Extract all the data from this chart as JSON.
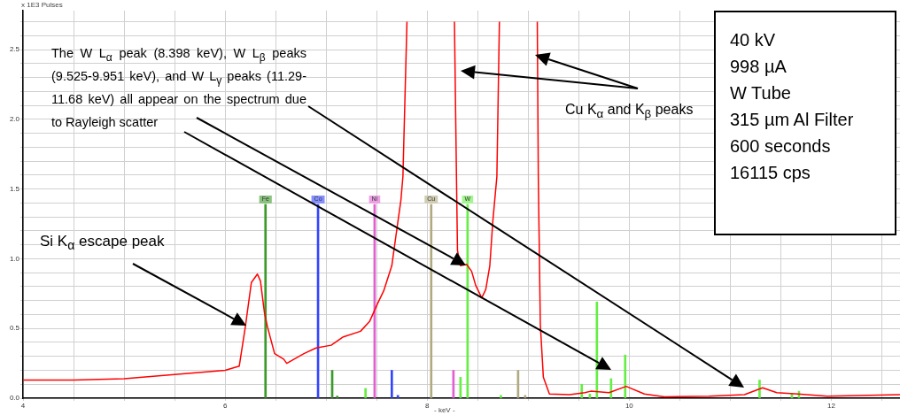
{
  "chart_data": {
    "type": "line",
    "xlabel": "- keV -",
    "ylabel": "x 1E3 Pulses",
    "xlim": [
      4,
      12.68
    ],
    "ylim": [
      0,
      2.78
    ],
    "xticks": [
      4,
      {
        "value": 4.5,
        "label": null
      },
      {
        "value": 5,
        "label": null
      },
      {
        "value": 5.5,
        "label": null
      },
      6,
      {
        "value": 6.5,
        "label": null
      },
      {
        "value": 7,
        "label": null
      },
      {
        "value": 7.5,
        "label": null
      },
      8,
      {
        "value": 8.5,
        "label": null
      },
      {
        "value": 9,
        "label": null
      },
      {
        "value": 9.5,
        "label": null
      },
      10,
      {
        "value": 10.5,
        "label": null
      },
      {
        "value": 11,
        "label": null
      },
      {
        "value": 11.5,
        "label": null
      },
      12,
      {
        "value": 12.5,
        "label": null
      }
    ],
    "yticks": [
      {
        "value": 0,
        "label": "0.0"
      },
      {
        "value": 0.1,
        "label": null
      },
      {
        "value": 0.2,
        "label": null
      },
      {
        "value": 0.3,
        "label": null
      },
      {
        "value": 0.4,
        "label": null
      },
      {
        "value": 0.5,
        "label": "0.5"
      },
      {
        "value": 0.6,
        "label": null
      },
      {
        "value": 0.7,
        "label": null
      },
      {
        "value": 0.8,
        "label": null
      },
      {
        "value": 0.9,
        "label": null
      },
      {
        "value": 1,
        "label": "1.0"
      },
      {
        "value": 1.1,
        "label": null
      },
      {
        "value": 1.2,
        "label": null
      },
      {
        "value": 1.3,
        "label": null
      },
      {
        "value": 1.4,
        "label": null
      },
      {
        "value": 1.5,
        "label": "1.5"
      },
      {
        "value": 1.6,
        "label": null
      },
      {
        "value": 1.7,
        "label": null
      },
      {
        "value": 1.8,
        "label": null
      },
      {
        "value": 1.9,
        "label": null
      },
      {
        "value": 2,
        "label": "2.0"
      },
      {
        "value": 2.1,
        "label": null
      },
      {
        "value": 2.2,
        "label": null
      },
      {
        "value": 2.3,
        "label": null
      },
      {
        "value": 2.4,
        "label": null
      },
      {
        "value": 2.5,
        "label": "2.5"
      },
      {
        "value": 2.6,
        "label": null
      },
      {
        "value": 2.7,
        "label": null
      }
    ],
    "grid": true,
    "marker": "none",
    "line_style": "solid",
    "series": [
      {
        "color": "#ff0000",
        "x": [
          4.0,
          4.5,
          5.0,
          5.5,
          6.0,
          6.14,
          6.2,
          6.26,
          6.32,
          6.35,
          6.39,
          6.42,
          6.49,
          6.58,
          6.61,
          6.78,
          6.9,
          7.05,
          7.17,
          7.34,
          7.43,
          7.51,
          7.57,
          7.65,
          7.69,
          7.74,
          7.76,
          7.8,
          8.0,
          8.27,
          8.29,
          8.3,
          8.33,
          8.39,
          8.44,
          8.48,
          8.54,
          8.58,
          8.62,
          8.65,
          8.69,
          8.715,
          8.9,
          9.09,
          9.1,
          9.12,
          9.15,
          9.21,
          9.41,
          9.56,
          9.62,
          9.8,
          9.97,
          10.15,
          10.35,
          10.79,
          11.14,
          11.32,
          11.46,
          11.67,
          11.96,
          12.68
        ],
        "values": [
          0.13,
          0.13,
          0.14,
          0.17,
          0.2,
          0.23,
          0.51,
          0.83,
          0.89,
          0.84,
          0.61,
          0.51,
          0.32,
          0.28,
          0.25,
          0.32,
          0.36,
          0.38,
          0.44,
          0.48,
          0.55,
          0.68,
          0.77,
          0.95,
          1.16,
          1.42,
          1.59,
          2.7,
          null,
          2.7,
          1.59,
          1.06,
          0.95,
          0.96,
          0.91,
          0.81,
          0.72,
          0.78,
          0.95,
          1.27,
          1.59,
          2.7,
          null,
          2.7,
          1.59,
          0.53,
          0.15,
          0.03,
          0.025,
          0.04,
          0.05,
          0.04,
          0.085,
          0.03,
          0.01,
          0.015,
          0.025,
          0.075,
          0.04,
          0.03,
          0.015,
          0.025
        ]
      },
      {
        "type": "bar",
        "name": "Fe",
        "color": "#3a9a2a",
        "x": [
          6.4,
          7.06,
          7.11
        ],
        "values": [
          1.39,
          0.2,
          0.015
        ]
      },
      {
        "type": "bar",
        "name": "Co",
        "color": "#3344ff",
        "x": [
          6.92,
          7.65,
          7.71
        ],
        "values": [
          1.39,
          0.2,
          0.02
        ]
      },
      {
        "type": "bar",
        "name": "Ni",
        "color": "#e060d0",
        "x": [
          7.48,
          8.26
        ],
        "values": [
          1.39,
          0.2
        ]
      },
      {
        "type": "bar",
        "name": "Cu",
        "color": "#b0aa80",
        "x": [
          8.04,
          8.9,
          8.97
        ],
        "values": [
          1.39,
          0.2,
          0.02
        ]
      },
      {
        "type": "bar",
        "name": "W",
        "color": "#66ee44",
        "x": [
          7.39,
          8.33,
          8.4,
          8.73,
          9.53,
          9.61,
          9.68,
          9.82,
          9.96,
          11.29,
          11.61,
          11.68
        ],
        "values": [
          0.07,
          0.15,
          1.39,
          0.02,
          0.1,
          0.03,
          0.69,
          0.14,
          0.31,
          0.13,
          0.03,
          0.05
        ]
      }
    ],
    "annotations": [
      "The W L$_{α}$ peak (8.398 keV), W L$_{β}$ peaks (9.525-9.951 keV), and W L$_{γ}$ peaks (11.29-11.68 keV) all appear on the spectrum due to Rayleigh scatter",
      "Si K$_{α}$ escape peak",
      "Cu K$_{α}$ and K$_{β}$ peaks",
      "40 kV",
      "998 µA",
      "W Tube",
      "315 µm Al Filter",
      "600 seconds",
      "16115 cps"
    ]
  }
}
